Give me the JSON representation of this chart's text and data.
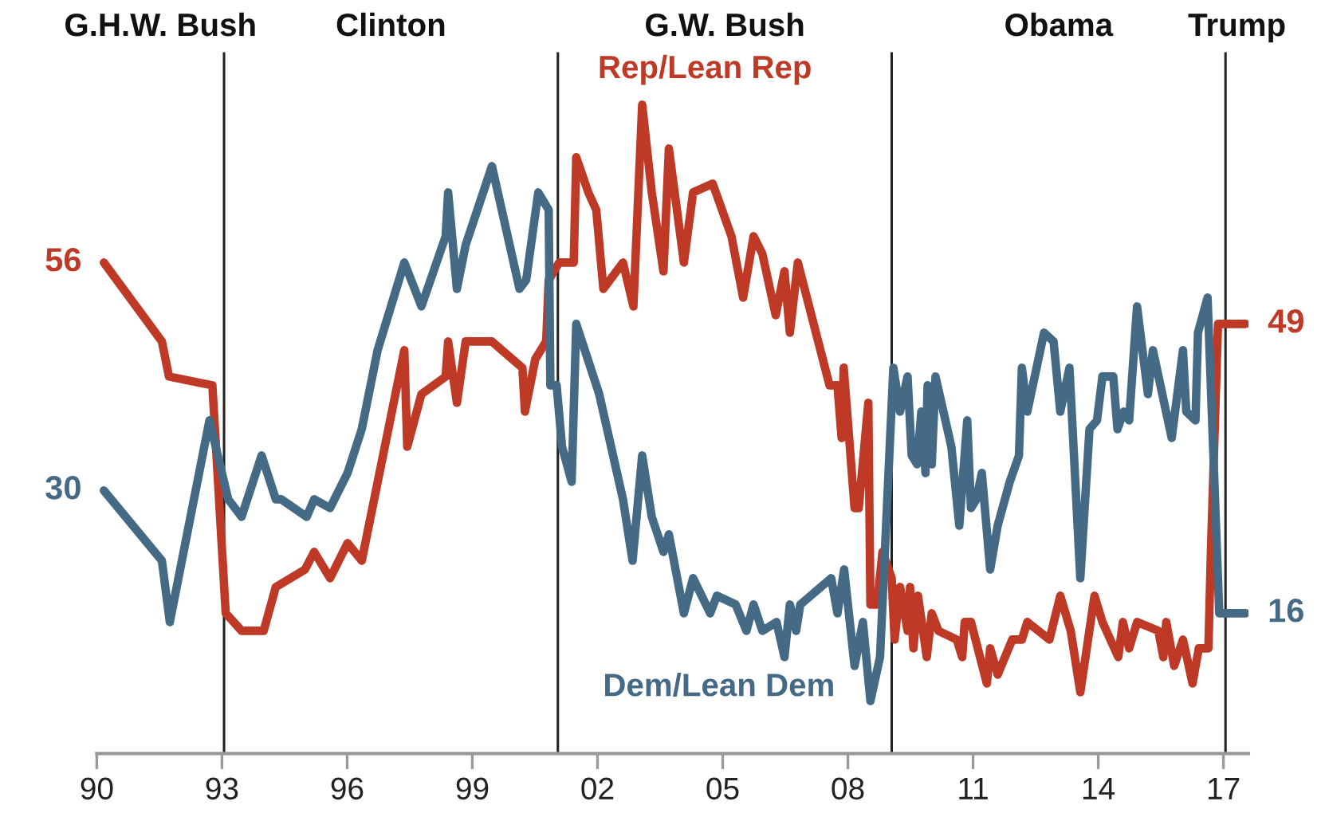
{
  "chart_data": {
    "type": "line",
    "annotations": [
      "G.H.W. Bush",
      "Clinton",
      "G.W. Bush",
      "Obama",
      "Trump"
    ],
    "xlim": [
      1990,
      2017.6
    ],
    "ylim": [
      0,
      80
    ],
    "xticks": [
      {
        "value": 1990,
        "label": "90"
      },
      {
        "value": 1993,
        "label": "93"
      },
      {
        "value": 1996,
        "label": "96"
      },
      {
        "value": 1999,
        "label": "99"
      },
      {
        "value": 2002,
        "label": "02"
      },
      {
        "value": 2005,
        "label": "05"
      },
      {
        "value": 2008,
        "label": "08"
      },
      {
        "value": 2011,
        "label": "11"
      },
      {
        "value": 2014,
        "label": "14"
      },
      {
        "value": 2017,
        "label": "17"
      }
    ],
    "tick_labels": "x",
    "ref_lines": [
      {
        "axis": "x",
        "value": 1993.05,
        "color": "#222222"
      },
      {
        "axis": "x",
        "value": 2001.05,
        "color": "#222222"
      },
      {
        "axis": "x",
        "value": 2009.05,
        "color": "#222222"
      },
      {
        "axis": "x",
        "value": 2017.05,
        "color": "#222222"
      }
    ],
    "series": [
      {
        "name": "Rep/Lean Rep",
        "color": "#bf3a26",
        "x": [
          1990.17,
          1991.56,
          1991.73,
          1992.77,
          1993.09,
          1993.47,
          1994.0,
          1994.29,
          1994.99,
          1995.21,
          1995.59,
          1996.01,
          1996.35,
          1997.37,
          1997.44,
          1997.78,
          1998.36,
          1998.42,
          1998.63,
          1998.84,
          1999.47,
          2000.2,
          2000.26,
          2000.51,
          2000.77,
          2000.83,
          2001.08,
          2001.43,
          2001.49,
          2001.78,
          2001.97,
          2002.14,
          2002.61,
          2002.86,
          2003.07,
          2003.3,
          2003.58,
          2003.71,
          2004.07,
          2004.29,
          2004.76,
          2005.21,
          2005.49,
          2005.74,
          2005.95,
          2006.27,
          2006.48,
          2006.61,
          2006.8,
          2007.56,
          2007.75,
          2007.85,
          2007.9,
          2008.16,
          2008.26,
          2008.49,
          2008.54,
          2008.7,
          2008.83,
          2009.05,
          2009.12,
          2009.25,
          2009.43,
          2009.49,
          2009.57,
          2009.68,
          2009.89,
          2010.01,
          2010.17,
          2010.61,
          2010.74,
          2010.8,
          2010.95,
          2011.33,
          2011.41,
          2011.59,
          2011.94,
          2012.17,
          2012.3,
          2012.83,
          2013.09,
          2013.34,
          2013.57,
          2013.91,
          2014.1,
          2014.48,
          2014.59,
          2014.74,
          2014.93,
          2015.44,
          2015.56,
          2015.63,
          2015.82,
          2016.03,
          2016.26,
          2016.41,
          2016.64,
          2016.7,
          2016.87,
          2017.53
        ],
        "values": [
          56,
          47,
          43,
          42,
          16,
          14,
          14,
          19,
          21,
          23,
          20,
          24,
          22,
          46,
          35,
          41,
          43,
          47,
          40,
          47,
          47,
          44,
          39,
          45,
          47,
          54,
          56,
          56,
          68,
          64,
          62,
          53,
          56,
          51,
          74,
          64,
          55,
          69,
          56,
          64,
          65,
          59,
          52,
          59,
          57,
          50,
          55,
          48,
          56,
          42,
          42,
          36,
          44,
          28,
          28,
          40,
          17,
          17,
          23,
          20,
          13,
          19,
          14,
          19,
          12,
          18,
          11,
          16,
          14,
          13,
          11,
          15,
          15,
          8,
          12,
          9,
          13,
          13,
          15,
          13,
          18,
          14,
          7,
          18,
          15,
          11,
          15,
          12,
          15,
          14,
          11,
          15,
          10,
          13,
          8,
          12,
          12,
          23,
          49,
          49
        ],
        "value_labels": [
          "56",
          null,
          null,
          null,
          null,
          null,
          null,
          null,
          null,
          null,
          null,
          null,
          null,
          null,
          null,
          null,
          null,
          null,
          null,
          null,
          null,
          null,
          null,
          null,
          null,
          null,
          null,
          null,
          null,
          null,
          null,
          null,
          null,
          null,
          null,
          null,
          null,
          null,
          null,
          null,
          null,
          null,
          null,
          null,
          null,
          null,
          null,
          null,
          null,
          null,
          null,
          null,
          null,
          null,
          null,
          null,
          null,
          null,
          null,
          null,
          null,
          null,
          null,
          null,
          null,
          null,
          null,
          null,
          null,
          null,
          null,
          null,
          null,
          null,
          null,
          null,
          null,
          null,
          null,
          null,
          null,
          null,
          null,
          null,
          null,
          null,
          null,
          null,
          null,
          null,
          null,
          null,
          null,
          null,
          null,
          null,
          null,
          null,
          null,
          "49"
        ]
      },
      {
        "name": "Dem/Lean Dem",
        "color": "#456a85",
        "x": [
          1990.17,
          1991.56,
          1991.75,
          1992.7,
          1993.15,
          1993.47,
          1993.95,
          1994.29,
          1994.42,
          1995.03,
          1995.21,
          1995.59,
          1996.01,
          1996.35,
          1996.73,
          1997.37,
          1997.78,
          1998.36,
          1998.42,
          1998.63,
          1998.84,
          1999.47,
          2000.13,
          2000.29,
          2000.58,
          2000.83,
          2000.87,
          2001.02,
          2001.15,
          2001.38,
          2001.49,
          2002.04,
          2002.61,
          2002.84,
          2003.07,
          2003.3,
          2003.58,
          2003.71,
          2004.07,
          2004.29,
          2004.7,
          2004.86,
          2005.31,
          2005.57,
          2005.74,
          2005.95,
          2006.29,
          2006.48,
          2006.61,
          2006.76,
          2006.86,
          2007.6,
          2007.75,
          2007.91,
          2008.16,
          2008.36,
          2008.54,
          2008.77,
          2009.09,
          2009.25,
          2009.43,
          2009.53,
          2009.66,
          2009.76,
          2009.86,
          2009.91,
          2010.01,
          2010.1,
          2010.48,
          2010.67,
          2010.86,
          2010.95,
          2011.08,
          2011.21,
          2011.41,
          2011.59,
          2011.88,
          2012.1,
          2012.17,
          2012.3,
          2012.7,
          2012.93,
          2013.09,
          2013.31,
          2013.57,
          2013.79,
          2013.97,
          2014.1,
          2014.36,
          2014.46,
          2014.61,
          2014.74,
          2014.93,
          2015.19,
          2015.31,
          2015.76,
          2016.03,
          2016.11,
          2016.33,
          2016.39,
          2016.62,
          2016.9,
          2017.53
        ],
        "values": [
          30,
          22,
          15,
          38,
          29,
          27,
          34,
          29,
          29,
          27,
          29,
          28,
          32,
          37,
          46,
          56,
          51,
          59,
          64,
          53,
          58,
          67,
          53,
          54,
          64,
          62,
          42,
          42,
          35,
          31,
          49,
          41,
          29,
          22,
          34,
          27,
          23,
          25,
          16,
          20,
          16,
          18,
          17,
          14,
          17,
          14,
          15,
          11,
          17,
          14,
          17,
          20,
          16,
          21,
          10,
          15,
          6,
          11,
          44,
          39,
          43,
          34,
          33,
          39,
          32,
          42,
          33,
          43,
          35,
          26,
          38,
          28,
          29,
          32,
          21,
          26,
          31,
          34,
          44,
          39,
          48,
          47,
          39,
          44,
          20,
          37,
          38,
          43,
          43,
          37,
          39,
          38,
          51,
          41,
          46,
          36,
          46,
          39,
          38,
          48,
          52,
          16,
          16
        ],
        "value_labels": [
          "30",
          null,
          null,
          null,
          null,
          null,
          null,
          null,
          null,
          null,
          null,
          null,
          null,
          null,
          null,
          null,
          null,
          null,
          null,
          null,
          null,
          null,
          null,
          null,
          null,
          null,
          null,
          null,
          null,
          null,
          null,
          null,
          null,
          null,
          null,
          null,
          null,
          null,
          null,
          null,
          null,
          null,
          null,
          null,
          null,
          null,
          null,
          null,
          null,
          null,
          null,
          null,
          null,
          null,
          null,
          null,
          null,
          null,
          null,
          null,
          null,
          null,
          null,
          null,
          null,
          null,
          null,
          null,
          null,
          null,
          null,
          null,
          null,
          null,
          null,
          null,
          null,
          null,
          null,
          null,
          null,
          null,
          null,
          null,
          null,
          null,
          null,
          null,
          null,
          null,
          null,
          null,
          null,
          null,
          null,
          null,
          null,
          null,
          null,
          null,
          null,
          null,
          "16"
        ]
      }
    ]
  }
}
